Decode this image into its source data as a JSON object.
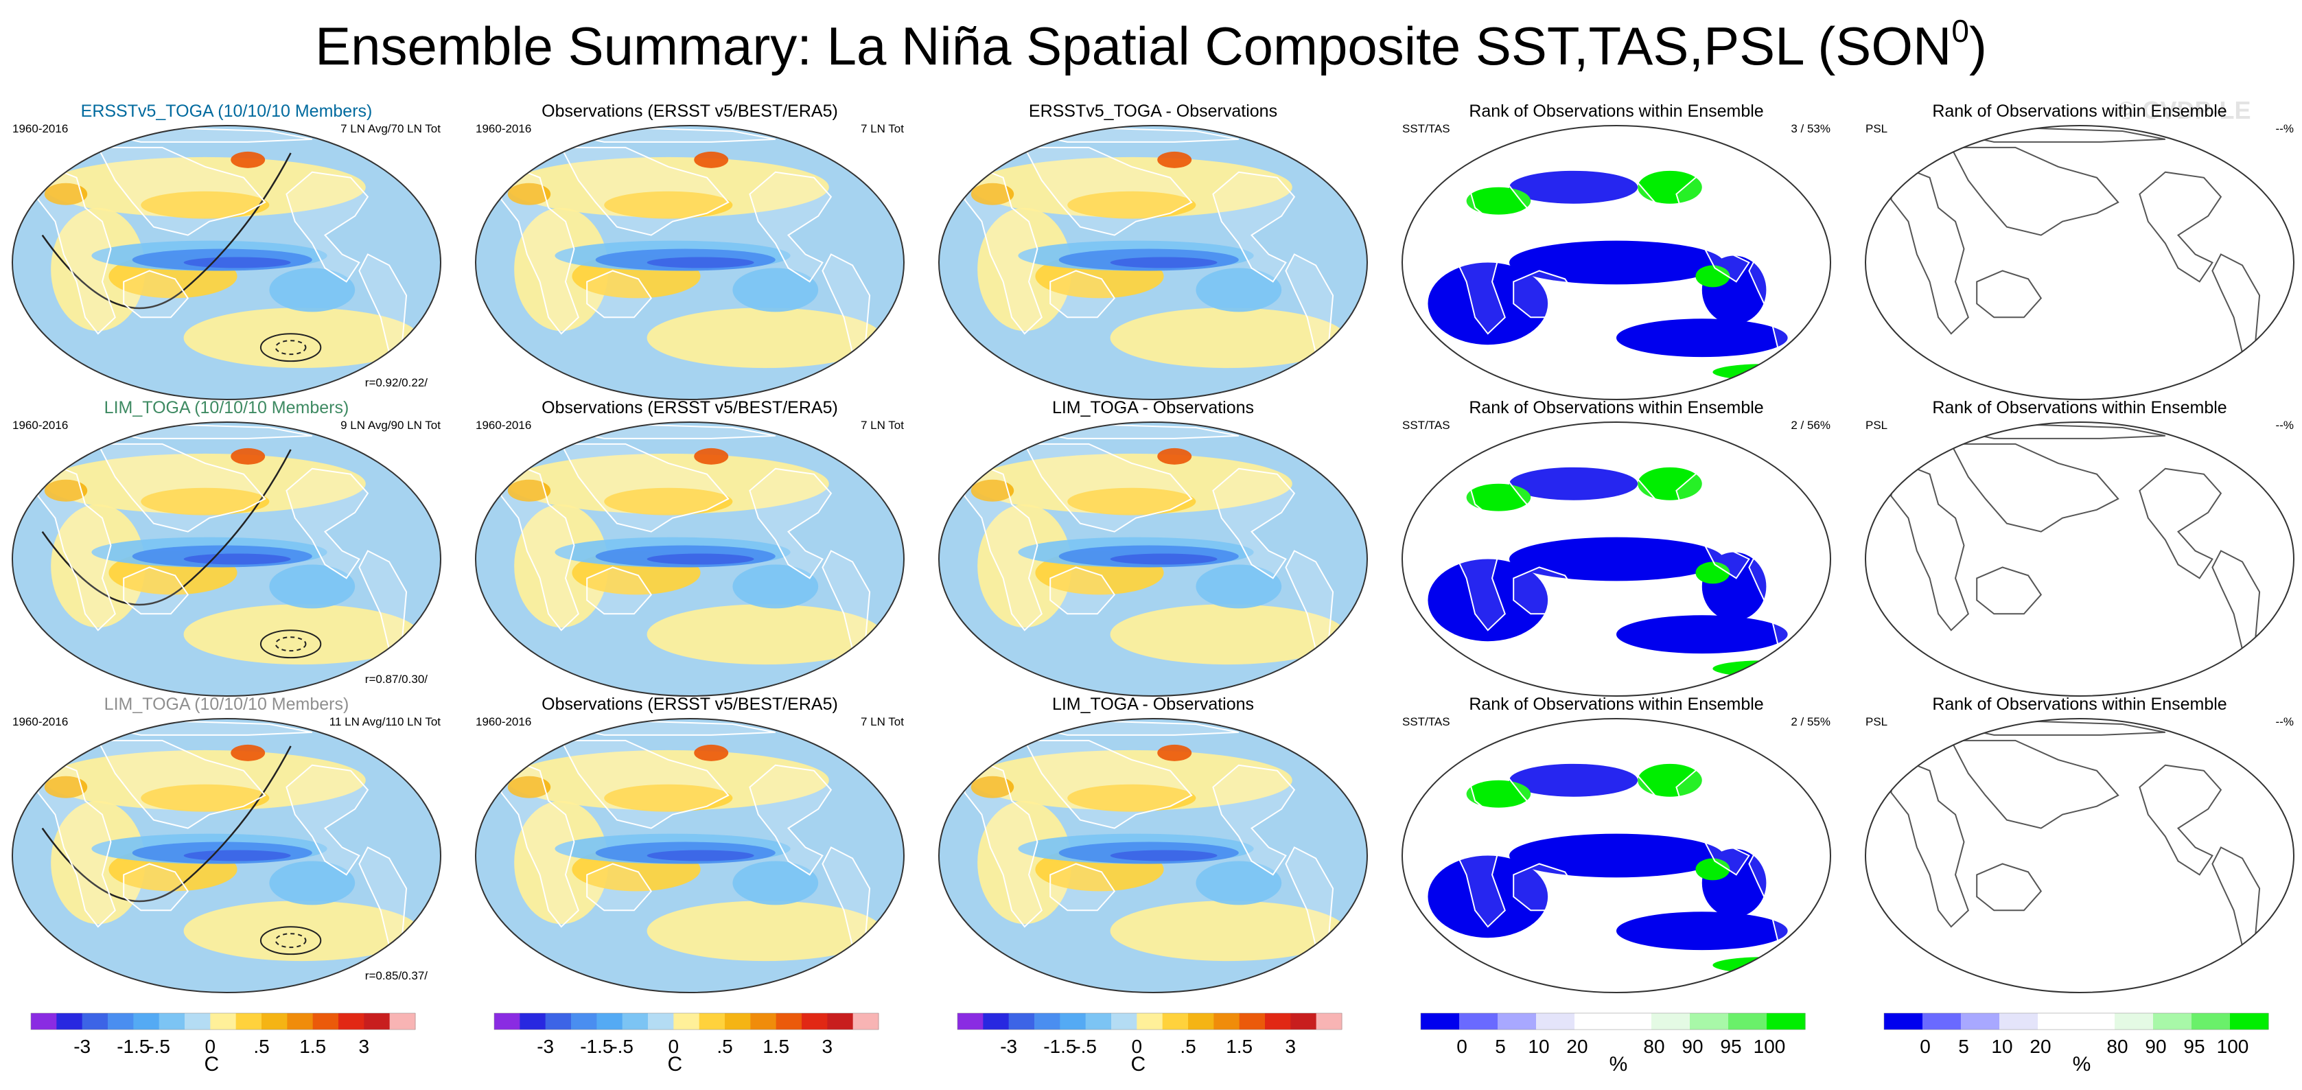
{
  "title": {
    "text": "Ensemble Summary: La Niña Spatial Composite SST,TAS,PSL (SON",
    "superscript": "0",
    "closing": ")"
  },
  "watermark": "© CVDP-LE",
  "colors": {
    "ensemble_title_rows": [
      "#006a9e",
      "#3e8a62",
      "#8f8f8f"
    ],
    "rank_low": "#0000ee",
    "rank_high": "#00ee00",
    "ocean_cool": "#a6d3f0",
    "warm": "#fff099"
  },
  "chart_data": [
    {
      "type": "heatmap",
      "panel": "r1c1",
      "title": "ERSSTv5_TOGA (10/10/10 Members)",
      "title_color": "#006a9e",
      "top_left": "1960-2016",
      "top_right": "7 LN Avg/70 LN Tot",
      "bottom_right": "r=0.92/0.22/",
      "variable": "SST/TAS anomaly",
      "units": "C",
      "contours": "PSL"
    },
    {
      "type": "heatmap",
      "panel": "r1c2",
      "title": "Observations (ERSST v5/BEST/ERA5)",
      "top_left": "1960-2016",
      "top_right": "7 LN Tot",
      "variable": "SST/TAS anomaly",
      "units": "C"
    },
    {
      "type": "heatmap",
      "panel": "r1c3",
      "title": "ERSSTv5_TOGA - Observations",
      "variable": "SST/TAS difference",
      "units": "C"
    },
    {
      "type": "heatmap",
      "panel": "r1c4",
      "title": "Rank of Observations within Ensemble",
      "top_left": "SST/TAS",
      "top_right": "3 /  53%",
      "units": "%"
    },
    {
      "type": "heatmap",
      "panel": "r1c5",
      "title": "Rank of Observations within Ensemble",
      "top_left": "PSL",
      "top_right": "--%",
      "units": "%"
    },
    {
      "type": "heatmap",
      "panel": "r2c1",
      "title": "LIM_TOGA (10/10/10 Members)",
      "title_color": "#3e8a62",
      "top_left": "1960-2016",
      "top_right": "9 LN Avg/90 LN Tot",
      "bottom_right": "r=0.87/0.30/",
      "units": "C",
      "contours": "PSL"
    },
    {
      "type": "heatmap",
      "panel": "r2c2",
      "title": "Observations (ERSST v5/BEST/ERA5)",
      "top_left": "1960-2016",
      "top_right": "7 LN Tot",
      "units": "C"
    },
    {
      "type": "heatmap",
      "panel": "r2c3",
      "title": "LIM_TOGA - Observations",
      "units": "C"
    },
    {
      "type": "heatmap",
      "panel": "r2c4",
      "title": "Rank of Observations within Ensemble",
      "top_left": "SST/TAS",
      "top_right": "2 /  56%",
      "units": "%"
    },
    {
      "type": "heatmap",
      "panel": "r2c5",
      "title": "Rank of Observations within Ensemble",
      "top_left": "PSL",
      "top_right": "--%",
      "units": "%"
    },
    {
      "type": "heatmap",
      "panel": "r3c1",
      "title": "LIM_TOGA (10/10/10 Members)",
      "title_color": "#8f8f8f",
      "top_left": "1960-2016",
      "top_right": "11 LN Avg/110 LN Tot",
      "bottom_right": "r=0.85/0.37/",
      "units": "C",
      "contours": "PSL"
    },
    {
      "type": "heatmap",
      "panel": "r3c2",
      "title": "Observations (ERSST v5/BEST/ERA5)",
      "top_left": "1960-2016",
      "top_right": "7 LN Tot",
      "units": "C"
    },
    {
      "type": "heatmap",
      "panel": "r3c3",
      "title": "LIM_TOGA - Observations",
      "units": "C"
    },
    {
      "type": "heatmap",
      "panel": "r3c4",
      "title": "Rank of Observations within Ensemble",
      "top_left": "SST/TAS",
      "top_right": "2 /  55%",
      "units": "%"
    },
    {
      "type": "heatmap",
      "panel": "r3c5",
      "title": "Rank of Observations within Ensemble",
      "top_left": "PSL",
      "top_right": "--%",
      "units": "%"
    }
  ],
  "colorbars": {
    "temperature": {
      "units": "C",
      "labels": [
        "-3",
        "-1.5",
        "-.5",
        "0",
        ".5",
        "1.5",
        "3"
      ],
      "colors": [
        "#8a2be2",
        "#2828e0",
        "#3c64e6",
        "#4a8ef0",
        "#54aaf4",
        "#7cc4f4",
        "#b4dcf4",
        "#fff099",
        "#ffd23c",
        "#f5b414",
        "#f08c0a",
        "#eb5a0a",
        "#e12814",
        "#c81e1e",
        "#f8b4b4"
      ]
    },
    "rank": {
      "units": "%",
      "labels": [
        "0",
        "5",
        "10",
        "20",
        "80",
        "90",
        "95",
        "100"
      ],
      "colors": [
        "#0000ee",
        "#6a6aff",
        "#a8a8ff",
        "#e4e4fa",
        "#ffffff",
        "#ffffff",
        "#e4fae4",
        "#a8f8a8",
        "#6af06a",
        "#00ee00"
      ]
    }
  }
}
